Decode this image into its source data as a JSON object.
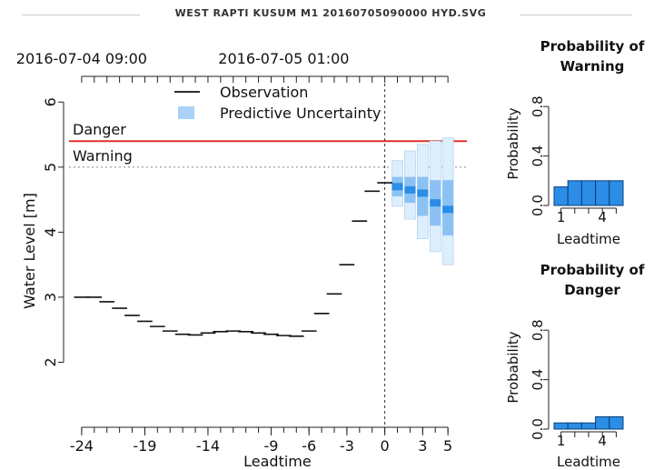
{
  "page": {
    "title": "WEST RAPTI KUSUM M1 20160705090000 HYD.SVG"
  },
  "chart_data": [
    {
      "type": "line",
      "top_time_labels": [
        "2016-07-04 09:00",
        "2016-07-05 01:00"
      ],
      "top_time_label_leadtimes": [
        -24,
        -8
      ],
      "xlabel": "Leadtime",
      "ylabel": "Water Level [m]",
      "xticks": [
        -24,
        -19,
        -14,
        -9,
        -6,
        -3,
        0,
        3,
        5
      ],
      "xtick_labels": [
        "-24",
        "-19",
        "-14",
        "-9",
        "-6",
        "-3",
        "0",
        "3",
        "5"
      ],
      "yticks": [
        2,
        3,
        4,
        5,
        6
      ],
      "ylim": [
        1,
        6.2
      ],
      "xlim": [
        -25,
        6.5
      ],
      "legend": {
        "position": "top-center",
        "entries": [
          "Observation",
          "Predictive Uncertainty"
        ]
      },
      "thresholds": [
        {
          "label": "Danger",
          "value": 5.4,
          "color": "#e0302a",
          "style": "solid"
        },
        {
          "label": "Warning",
          "value": 5.0,
          "color": "#888888",
          "style": "dotted"
        }
      ],
      "now_line": 0,
      "observation": {
        "x": [
          -24,
          -23,
          -22,
          -21,
          -20,
          -19,
          -18,
          -17,
          -16,
          -15,
          -14,
          -13,
          -12,
          -11,
          -10,
          -9,
          -8,
          -7,
          -6,
          -5,
          -4,
          -3,
          -2,
          -1,
          0
        ],
        "y": [
          3.0,
          3.0,
          2.93,
          2.83,
          2.72,
          2.63,
          2.55,
          2.48,
          2.43,
          2.42,
          2.45,
          2.47,
          2.48,
          2.47,
          2.45,
          2.43,
          2.41,
          2.4,
          2.48,
          2.75,
          3.05,
          3.5,
          4.17,
          4.63,
          4.76
        ]
      },
      "uncertainty": {
        "x": [
          1,
          2,
          3,
          4,
          5
        ],
        "p05": [
          4.4,
          4.2,
          3.9,
          3.7,
          3.5
        ],
        "p25": [
          4.55,
          4.45,
          4.25,
          4.1,
          3.95
        ],
        "median": [
          4.7,
          4.65,
          4.6,
          4.45,
          4.35
        ],
        "p75": [
          4.85,
          4.85,
          4.85,
          4.8,
          4.8
        ],
        "p95": [
          5.1,
          5.25,
          5.35,
          5.4,
          5.45
        ],
        "color": "#2b8de6"
      }
    },
    {
      "type": "bar",
      "title": "Probability of Warning",
      "xlabel": "Leadtime",
      "ylabel": "Probability",
      "categories": [
        1,
        2,
        3,
        4,
        5
      ],
      "values": [
        0.15,
        0.2,
        0.2,
        0.2,
        0.2
      ],
      "xtick_labels": [
        "1",
        "4"
      ],
      "yticks": [
        0.0,
        0.4,
        0.8
      ],
      "ylim": [
        0,
        1.0
      ],
      "color": "#2b8de6"
    },
    {
      "type": "bar",
      "title": "Probability of Danger",
      "xlabel": "Leadtime",
      "ylabel": "Probability",
      "categories": [
        1,
        2,
        3,
        4,
        5
      ],
      "values": [
        0.05,
        0.05,
        0.05,
        0.1,
        0.1
      ],
      "xtick_labels": [
        "1",
        "4"
      ],
      "yticks": [
        0.0,
        0.4,
        0.8
      ],
      "ylim": [
        0,
        1.0
      ],
      "color": "#2b8de6"
    }
  ]
}
